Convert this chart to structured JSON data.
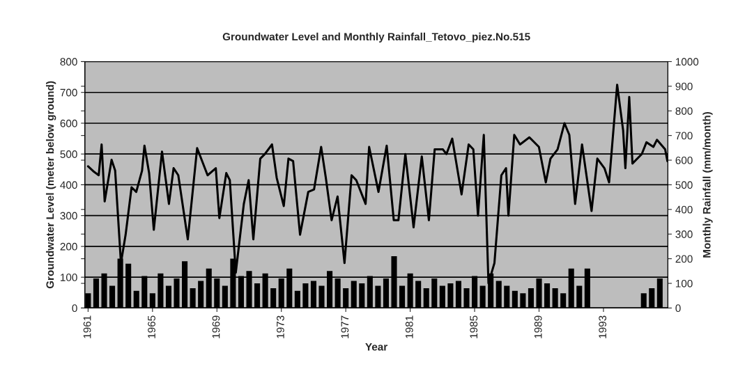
{
  "chart_data": {
    "type": "line",
    "title": "Groundwater Level and Monthly Rainfall_Tetovo_piez.No.515",
    "xlabel": "Year",
    "ylabel": "Groundwater Level (meter below ground)",
    "y2label": "Monthly Rainfall (mm/month)",
    "xlim": [
      1960.8,
      1997
    ],
    "xticks": [
      1961,
      1965,
      1969,
      1973,
      1977,
      1981,
      1985,
      1989,
      1993
    ],
    "ylim": [
      0,
      800
    ],
    "yticks": [
      0,
      100,
      200,
      300,
      400,
      500,
      600,
      700,
      800
    ],
    "y2lim": [
      0,
      1000
    ],
    "y2ticks": [
      0,
      100,
      200,
      300,
      400,
      500,
      600,
      700,
      800,
      900,
      1000
    ],
    "grid": "y",
    "legend": false,
    "marker": "none",
    "line_style": "solid",
    "series": [
      {
        "type": "bar",
        "axis": "y2",
        "color": "#000000",
        "x": [
          1961.0,
          1961.5,
          1962.0,
          1962.5,
          1963.0,
          1963.5,
          1964.0,
          1964.5,
          1965.0,
          1965.5,
          1966.0,
          1966.5,
          1967.0,
          1967.5,
          1968.0,
          1968.5,
          1969.0,
          1969.5,
          1970.0,
          1970.5,
          1971.0,
          1971.5,
          1972.0,
          1972.5,
          1973.0,
          1973.5,
          1974.0,
          1974.5,
          1975.0,
          1975.5,
          1976.0,
          1976.5,
          1977.0,
          1977.5,
          1978.0,
          1978.5,
          1979.0,
          1979.5,
          1980.0,
          1980.5,
          1981.0,
          1981.5,
          1982.0,
          1982.5,
          1983.0,
          1983.5,
          1984.0,
          1984.5,
          1985.0,
          1985.5,
          1986.0,
          1986.5,
          1987.0,
          1987.5,
          1988.0,
          1988.5,
          1989.0,
          1989.5,
          1990.0,
          1990.5,
          1991.0,
          1991.5,
          1992.0,
          1992.5,
          1993.0,
          1993.5,
          1994.0,
          1994.5,
          1995.0,
          1995.5,
          1996.0,
          1996.5
        ],
        "values": [
          60,
          120,
          140,
          90,
          200,
          180,
          70,
          130,
          60,
          140,
          90,
          120,
          190,
          80,
          110,
          160,
          120,
          90,
          200,
          130,
          150,
          100,
          140,
          80,
          120,
          160,
          70,
          100,
          110,
          90,
          150,
          120,
          80,
          110,
          100,
          130,
          90,
          120,
          210,
          90,
          140,
          110,
          80,
          120,
          90,
          100,
          110,
          80,
          130,
          90,
          140,
          110,
          90,
          70,
          60,
          80,
          120,
          100,
          80,
          60,
          160,
          90,
          160,
          0,
          0,
          0,
          0,
          0,
          0,
          60,
          80,
          120
        ]
      },
      {
        "axis": "y",
        "color": "#000000",
        "x": [
          1961.0,
          1961.37,
          1961.66,
          1961.84,
          1962.03,
          1962.46,
          1962.68,
          1963.04,
          1963.33,
          1963.7,
          1963.99,
          1964.35,
          1964.5,
          1964.79,
          1965.08,
          1965.59,
          1966.02,
          1966.31,
          1966.6,
          1967.19,
          1967.77,
          1968.42,
          1968.93,
          1969.15,
          1969.58,
          1969.8,
          1970.17,
          1970.67,
          1970.97,
          1971.26,
          1971.69,
          1971.98,
          1972.42,
          1972.71,
          1973.15,
          1973.44,
          1973.73,
          1974.16,
          1974.67,
          1975.03,
          1975.47,
          1975.76,
          1976.12,
          1976.49,
          1976.92,
          1977.36,
          1977.65,
          1978.23,
          1978.45,
          1979.03,
          1979.54,
          1979.98,
          1980.27,
          1980.7,
          1981.21,
          1981.72,
          1982.16,
          1982.52,
          1983.03,
          1983.25,
          1983.61,
          1984.19,
          1984.63,
          1984.92,
          1985.21,
          1985.57,
          1985.86,
          1986.23,
          1986.66,
          1986.95,
          1987.1,
          1987.46,
          1987.82,
          1988.4,
          1988.99,
          1989.42,
          1989.71,
          1990.15,
          1990.58,
          1990.88,
          1991.24,
          1991.67,
          1992.26,
          1992.62,
          1993.06,
          1993.35,
          1993.85,
          1994.22,
          1994.36,
          1994.6,
          1994.8,
          1995.38,
          1995.67,
          1996.1,
          1996.32,
          1996.83,
          1996.97
        ],
        "values": [
          460,
          442,
          431,
          531,
          346,
          481,
          446,
          146,
          238,
          392,
          377,
          446,
          527,
          438,
          254,
          508,
          338,
          454,
          431,
          223,
          519,
          431,
          454,
          292,
          438,
          415,
          115,
          338,
          415,
          223,
          485,
          500,
          531,
          423,
          331,
          485,
          477,
          238,
          377,
          385,
          523,
          423,
          285,
          362,
          146,
          431,
          415,
          338,
          523,
          377,
          527,
          285,
          285,
          500,
          262,
          492,
          285,
          515,
          515,
          500,
          550,
          369,
          531,
          515,
          300,
          562,
          80,
          146,
          431,
          454,
          300,
          562,
          531,
          554,
          523,
          408,
          485,
          515,
          600,
          562,
          338,
          531,
          315,
          485,
          454,
          408,
          725,
          577,
          454,
          685,
          469,
          500,
          538,
          523,
          546,
          515,
          477
        ]
      }
    ]
  }
}
